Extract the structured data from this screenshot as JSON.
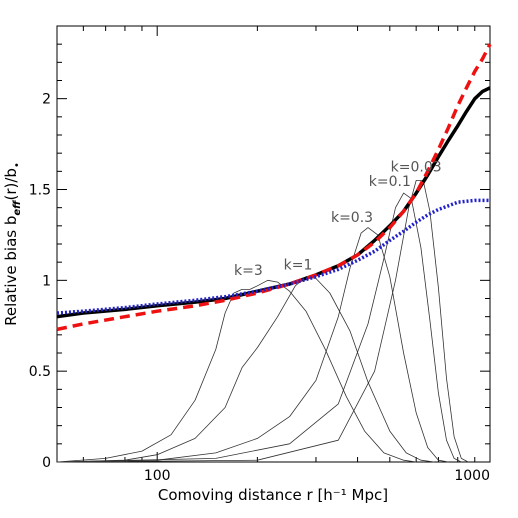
{
  "chart_data": {
    "type": "line",
    "xlabel": "Comoving distance r [h⁻¹ Mpc]",
    "ylabel_main": "Relative bias b",
    "ylabel_sub": "eff",
    "ylabel_tail": "(r)/b",
    "ylabel_end_sub": "•",
    "xscale": "log",
    "xlim": [
      50,
      1000
    ],
    "ylim": [
      0,
      2.4
    ],
    "grid": false,
    "x_ticks": [
      {
        "value": 100,
        "label": "100"
      },
      {
        "value": 1000,
        "label": "1000"
      }
    ],
    "y_ticks": [
      {
        "value": 0,
        "label": "0"
      },
      {
        "value": 0.5,
        "label": "0.5"
      },
      {
        "value": 1,
        "label": "1"
      },
      {
        "value": 1.5,
        "label": "1.5"
      },
      {
        "value": 2,
        "label": "2"
      }
    ],
    "series": [
      {
        "style": "solid-thick",
        "color": "#000000",
        "points": [
          [
            50,
            0.8
          ],
          [
            60,
            0.82
          ],
          [
            80,
            0.84
          ],
          [
            100,
            0.86
          ],
          [
            130,
            0.88
          ],
          [
            160,
            0.9
          ],
          [
            200,
            0.94
          ],
          [
            250,
            0.98
          ],
          [
            300,
            1.03
          ],
          [
            350,
            1.08
          ],
          [
            400,
            1.14
          ],
          [
            450,
            1.22
          ],
          [
            500,
            1.3
          ],
          [
            550,
            1.38
          ],
          [
            600,
            1.48
          ],
          [
            650,
            1.58
          ],
          [
            700,
            1.68
          ],
          [
            750,
            1.77
          ],
          [
            800,
            1.85
          ],
          [
            850,
            1.93
          ],
          [
            900,
            2.0
          ],
          [
            950,
            2.04
          ],
          [
            1000,
            2.06
          ]
        ]
      },
      {
        "style": "dashed-thick",
        "color": "#ee1111",
        "points": [
          [
            50,
            0.73
          ],
          [
            60,
            0.76
          ],
          [
            80,
            0.8
          ],
          [
            100,
            0.83
          ],
          [
            130,
            0.86
          ],
          [
            160,
            0.89
          ],
          [
            200,
            0.93
          ],
          [
            250,
            0.98
          ],
          [
            300,
            1.03
          ],
          [
            350,
            1.08
          ],
          [
            400,
            1.14
          ],
          [
            450,
            1.21
          ],
          [
            500,
            1.29
          ],
          [
            550,
            1.38
          ],
          [
            600,
            1.48
          ],
          [
            650,
            1.6
          ],
          [
            700,
            1.72
          ],
          [
            750,
            1.84
          ],
          [
            800,
            1.96
          ],
          [
            850,
            2.06
          ],
          [
            900,
            2.15
          ],
          [
            950,
            2.22
          ],
          [
            1000,
            2.3
          ]
        ]
      },
      {
        "style": "dotted-thick",
        "color": "#2222cc",
        "points": [
          [
            50,
            0.82
          ],
          [
            60,
            0.83
          ],
          [
            80,
            0.85
          ],
          [
            100,
            0.87
          ],
          [
            130,
            0.89
          ],
          [
            160,
            0.91
          ],
          [
            200,
            0.94
          ],
          [
            250,
            0.98
          ],
          [
            300,
            1.02
          ],
          [
            350,
            1.06
          ],
          [
            400,
            1.11
          ],
          [
            450,
            1.16
          ],
          [
            500,
            1.22
          ],
          [
            550,
            1.27
          ],
          [
            600,
            1.32
          ],
          [
            650,
            1.36
          ],
          [
            700,
            1.39
          ],
          [
            750,
            1.41
          ],
          [
            800,
            1.43
          ],
          [
            900,
            1.44
          ],
          [
            1000,
            1.44
          ]
        ]
      },
      {
        "style": "thin",
        "color": "#333333",
        "points": [
          [
            50,
            0.0
          ],
          [
            70,
            0.02
          ],
          [
            90,
            0.06
          ],
          [
            110,
            0.15
          ],
          [
            130,
            0.34
          ],
          [
            150,
            0.62
          ],
          [
            160,
            0.82
          ],
          [
            170,
            0.93
          ],
          [
            180,
            0.95
          ],
          [
            190,
            0.95
          ],
          [
            200,
            0.97
          ],
          [
            215,
            1.0
          ],
          [
            230,
            0.99
          ],
          [
            250,
            0.94
          ],
          [
            280,
            0.83
          ],
          [
            320,
            0.62
          ],
          [
            370,
            0.36
          ],
          [
            420,
            0.17
          ],
          [
            480,
            0.05
          ],
          [
            550,
            0.01
          ],
          [
            600,
            0.0
          ]
        ]
      },
      {
        "style": "thin",
        "color": "#333333",
        "points": [
          [
            50,
            0.0
          ],
          [
            80,
            0.01
          ],
          [
            100,
            0.04
          ],
          [
            130,
            0.13
          ],
          [
            160,
            0.3
          ],
          [
            180,
            0.52
          ],
          [
            200,
            0.63
          ],
          [
            230,
            0.8
          ],
          [
            260,
            0.97
          ],
          [
            280,
            1.02
          ],
          [
            300,
            1.01
          ],
          [
            330,
            0.93
          ],
          [
            380,
            0.72
          ],
          [
            430,
            0.44
          ],
          [
            500,
            0.17
          ],
          [
            560,
            0.05
          ],
          [
            620,
            0.01
          ],
          [
            680,
            0.0
          ]
        ]
      },
      {
        "style": "thin",
        "color": "#333333",
        "points": [
          [
            50,
            0.0
          ],
          [
            100,
            0.01
          ],
          [
            150,
            0.05
          ],
          [
            200,
            0.13
          ],
          [
            250,
            0.25
          ],
          [
            300,
            0.45
          ],
          [
            350,
            0.8
          ],
          [
            380,
            1.07
          ],
          [
            410,
            1.26
          ],
          [
            430,
            1.29
          ],
          [
            460,
            1.25
          ],
          [
            500,
            1.02
          ],
          [
            550,
            0.6
          ],
          [
            600,
            0.27
          ],
          [
            650,
            0.08
          ],
          [
            700,
            0.01
          ],
          [
            750,
            0.0
          ]
        ]
      },
      {
        "style": "thin",
        "color": "#333333",
        "points": [
          [
            50,
            0.0
          ],
          [
            150,
            0.02
          ],
          [
            250,
            0.1
          ],
          [
            350,
            0.32
          ],
          [
            430,
            0.76
          ],
          [
            480,
            1.12
          ],
          [
            520,
            1.4
          ],
          [
            550,
            1.48
          ],
          [
            580,
            1.45
          ],
          [
            620,
            1.18
          ],
          [
            660,
            0.78
          ],
          [
            700,
            0.38
          ],
          [
            740,
            0.12
          ],
          [
            780,
            0.02
          ],
          [
            820,
            0.0
          ]
        ]
      },
      {
        "style": "thin",
        "color": "#333333",
        "points": [
          [
            50,
            0.0
          ],
          [
            200,
            0.01
          ],
          [
            350,
            0.12
          ],
          [
            450,
            0.5
          ],
          [
            520,
            1.0
          ],
          [
            570,
            1.4
          ],
          [
            600,
            1.55
          ],
          [
            630,
            1.55
          ],
          [
            660,
            1.38
          ],
          [
            700,
            0.96
          ],
          [
            740,
            0.46
          ],
          [
            780,
            0.14
          ],
          [
            820,
            0.02
          ],
          [
            860,
            0.0
          ]
        ]
      }
    ],
    "annotations": [
      {
        "text": "k=3",
        "x": 188,
        "y": 1.03
      },
      {
        "text": "k=1",
        "x": 265,
        "y": 1.06
      },
      {
        "text": "k=0.3",
        "x": 385,
        "y": 1.32
      },
      {
        "text": "k=0.1",
        "x": 500,
        "y": 1.52
      },
      {
        "text": "k=0.03",
        "x": 600,
        "y": 1.6
      }
    ]
  }
}
